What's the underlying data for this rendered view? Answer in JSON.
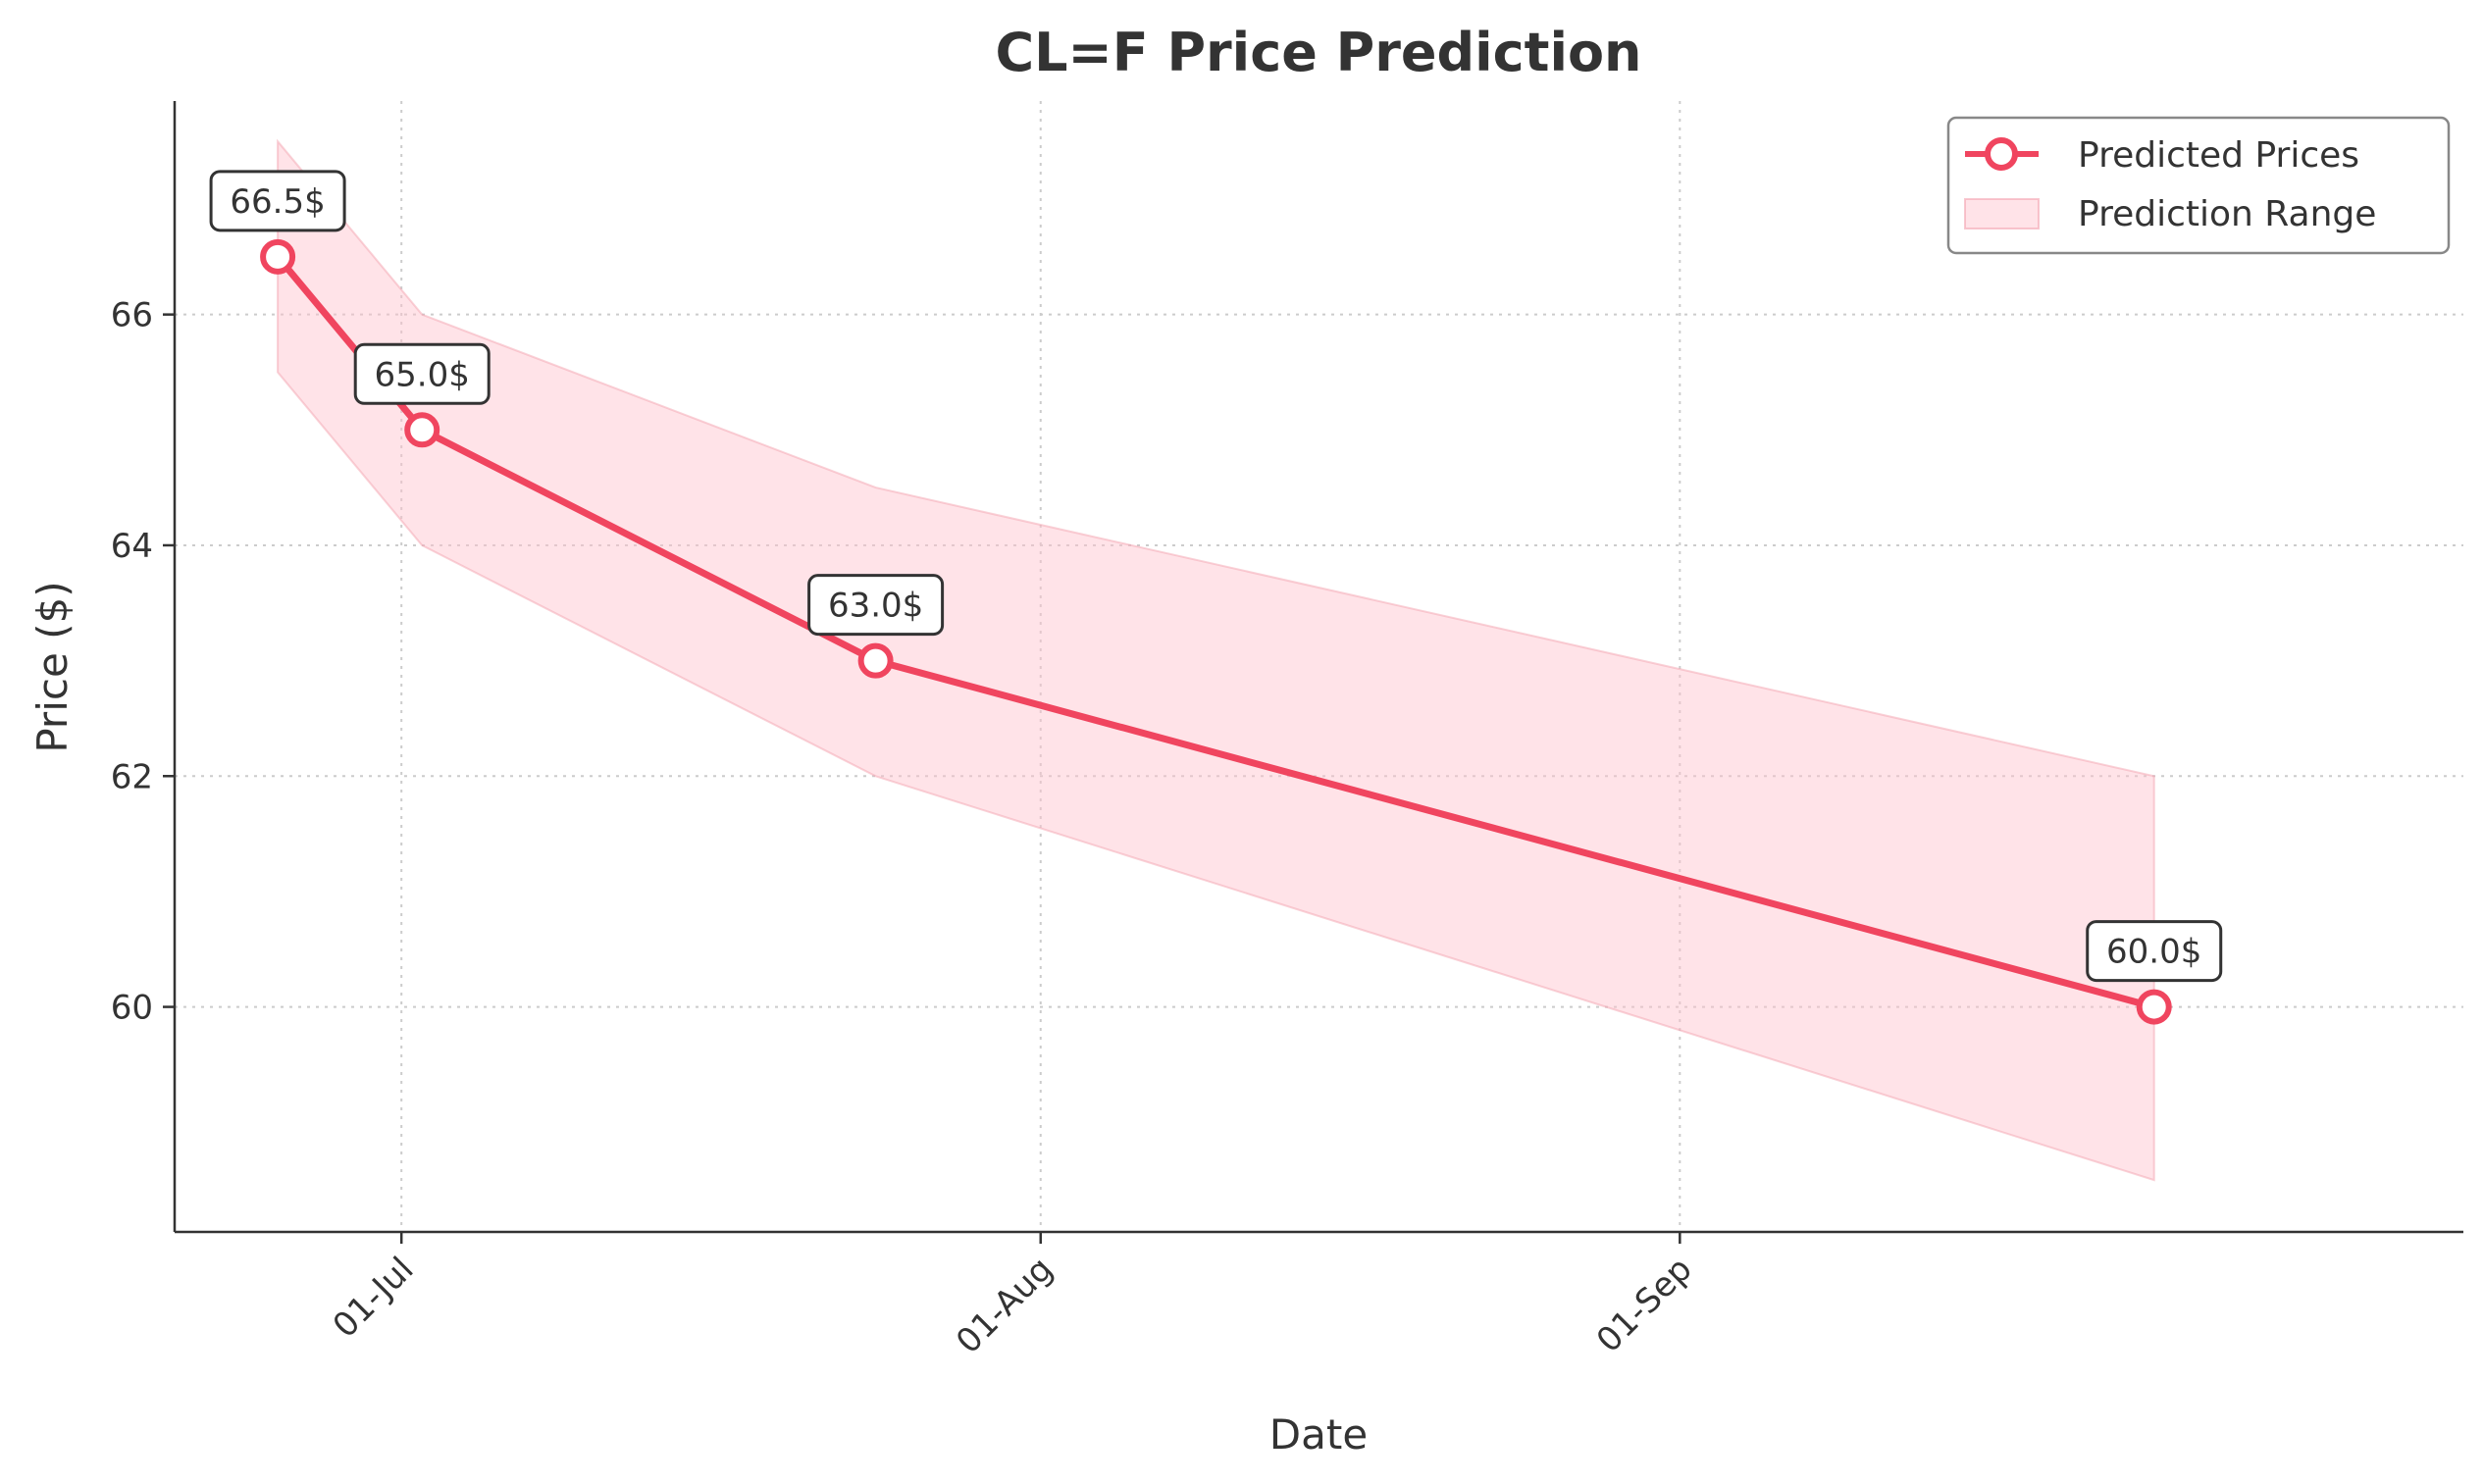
{
  "chart_data": {
    "type": "line",
    "title": "CL=F Price Prediction",
    "xlabel": "Date",
    "ylabel": "Price ($)",
    "x_ticks": [
      {
        "date": "2025-07-01",
        "label": "01-Jul"
      },
      {
        "date": "2025-08-01",
        "label": "01-Aug"
      },
      {
        "date": "2025-09-01",
        "label": "01-Sep"
      }
    ],
    "y_ticks": [
      60,
      62,
      64,
      66
    ],
    "xlim": [
      "2025-06-20",
      "2025-10-09"
    ],
    "ylim": [
      58.05,
      67.85
    ],
    "grid": true,
    "legend_position": "top-right",
    "series": [
      {
        "name": "Predicted Prices",
        "color": "#f0455f",
        "points": [
          {
            "date": "2025-06-25",
            "value": 66.5,
            "label": "66.5$"
          },
          {
            "date": "2025-07-02",
            "value": 65.0,
            "label": "65.0$"
          },
          {
            "date": "2025-07-24",
            "value": 63.0,
            "label": "63.0$"
          },
          {
            "date": "2025-09-24",
            "value": 60.0,
            "label": "60.0$"
          }
        ]
      }
    ],
    "range": {
      "name": "Prediction Range",
      "color": "#ffc0cb",
      "points": [
        {
          "date": "2025-06-25",
          "low": 65.5,
          "high": 67.5
        },
        {
          "date": "2025-07-02",
          "low": 64.0,
          "high": 66.0
        },
        {
          "date": "2025-07-24",
          "low": 62.0,
          "high": 64.5
        },
        {
          "date": "2025-09-24",
          "low": 58.5,
          "high": 62.0
        }
      ]
    }
  }
}
